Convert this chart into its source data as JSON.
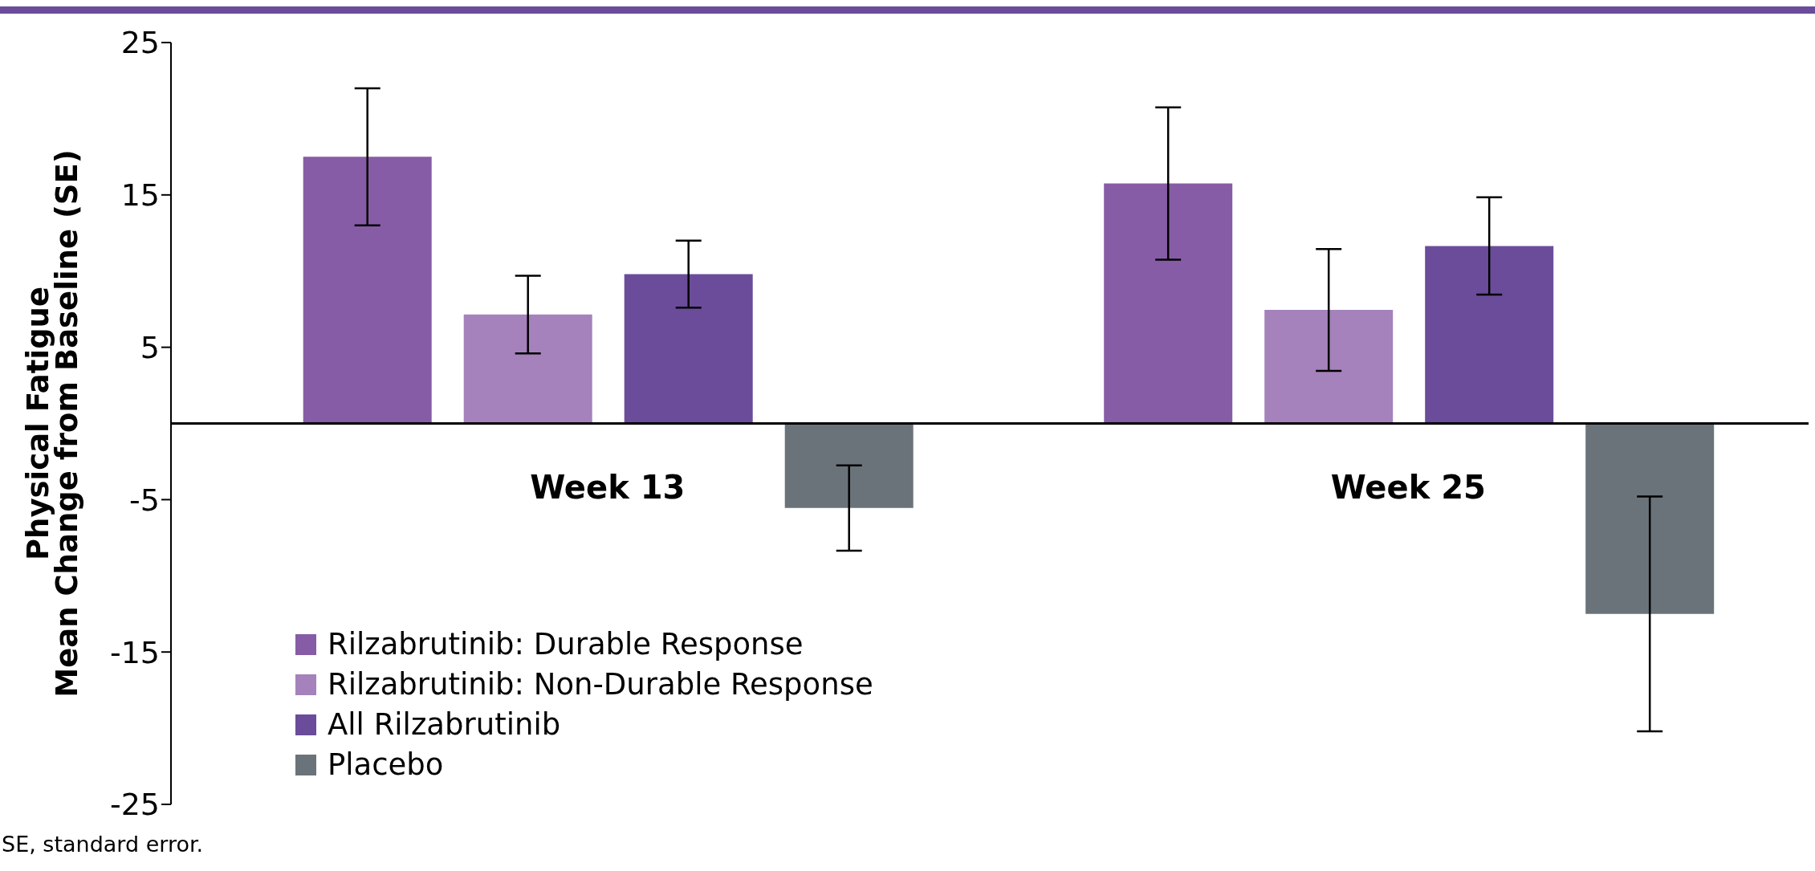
{
  "chart_data": {
    "type": "bar",
    "ylabel": "Physical Fatigue\nMean Change from Baseline (SE)",
    "categories": [
      "Week 13",
      "Week 25"
    ],
    "series": [
      {
        "name": "Rilzabrutinib: Durable Response",
        "color": "#875ca6",
        "values": [
          17.5,
          15.75
        ],
        "errors": [
          4.5,
          5.0
        ]
      },
      {
        "name": "Rilzabrutinib: Non-Durable Response",
        "color": "#a582bb",
        "values": [
          7.15,
          7.45
        ],
        "errors": [
          2.55,
          4.0
        ]
      },
      {
        "name": "All Rilzabrutinib",
        "color": "#6b4c9a",
        "values": [
          9.8,
          11.65
        ],
        "errors": [
          2.2,
          3.2
        ]
      },
      {
        "name": "Placebo",
        "color": "#6b737a",
        "values": [
          -5.55,
          -12.5
        ],
        "errors": [
          2.8,
          7.7
        ]
      }
    ],
    "ylim": [
      -25,
      25
    ],
    "yticks": [
      -25,
      -15,
      -5,
      5,
      15,
      25
    ],
    "legend": "bottom left",
    "annotations": [
      "SE, standard error."
    ]
  }
}
